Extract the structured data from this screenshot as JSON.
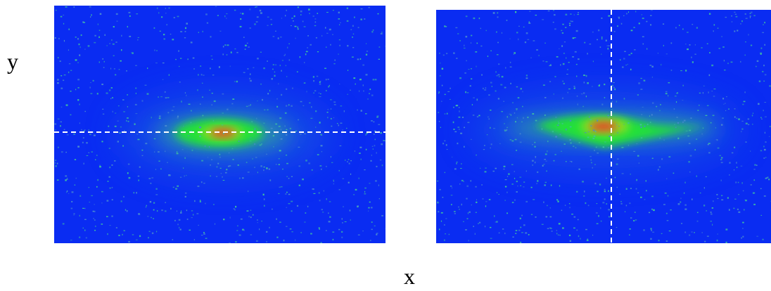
{
  "axis_labels": {
    "y": "y",
    "x": "x"
  }
}
